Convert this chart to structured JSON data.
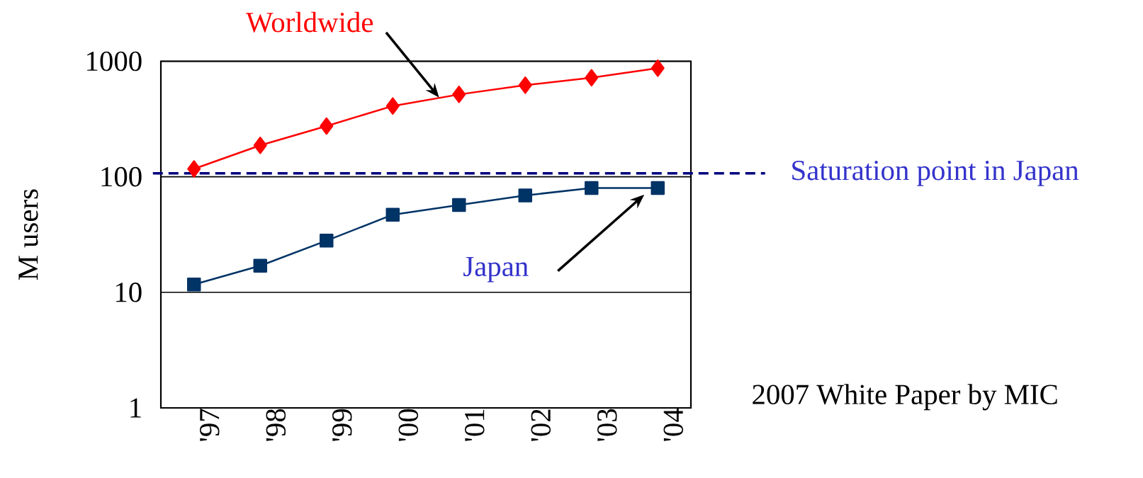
{
  "chart_data": {
    "type": "line",
    "ylabel": "M users",
    "categories": [
      "'97",
      "'98",
      "'99",
      "'00",
      "'01",
      "'02",
      "'03",
      "'04"
    ],
    "log": "y",
    "ylim": [
      1,
      1000
    ],
    "yticks": [
      1,
      10,
      100,
      1000
    ],
    "grid": "y",
    "series": [
      {
        "name": "Worldwide",
        "color": "#ff0000",
        "marker": "diamond",
        "values": [
          117,
          187,
          275,
          410,
          516,
          620,
          720,
          870
        ]
      },
      {
        "name": "Japan",
        "color": "#003366",
        "marker": "square",
        "values": [
          11.7,
          17,
          28,
          47,
          57,
          69,
          80,
          80
        ]
      }
    ],
    "ref_lines": [
      {
        "axis": "y",
        "value": 107,
        "label": "Saturation point in Japan",
        "color": "#000080",
        "line_style": "dashed"
      }
    ],
    "annotations": [
      "2007 White Paper by MIC"
    ]
  }
}
